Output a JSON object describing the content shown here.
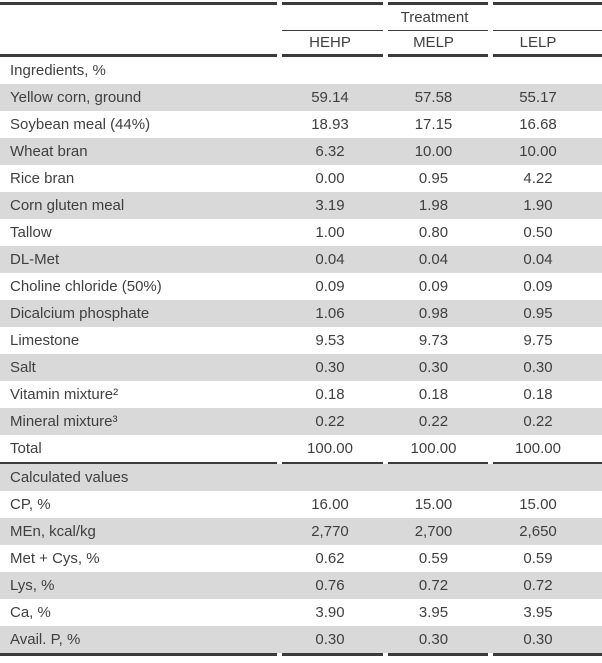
{
  "table": {
    "header": {
      "group_label": "Treatment",
      "columns": [
        "HEHP",
        "MELP",
        "LELP"
      ]
    },
    "rows": [
      {
        "label": "Ingredients, %",
        "section": true
      },
      {
        "label": "Yellow corn, ground",
        "values": [
          "59.14",
          "57.58",
          "55.17"
        ]
      },
      {
        "label": "Soybean meal (44%)",
        "values": [
          "18.93",
          "17.15",
          "16.68"
        ]
      },
      {
        "label": "Wheat bran",
        "values": [
          "6.32",
          "10.00",
          "10.00"
        ]
      },
      {
        "label": "Rice bran",
        "values": [
          "0.00",
          "0.95",
          "4.22"
        ]
      },
      {
        "label": "Corn gluten meal",
        "values": [
          "3.19",
          "1.98",
          "1.90"
        ]
      },
      {
        "label": "Tallow",
        "values": [
          "1.00",
          "0.80",
          "0.50"
        ]
      },
      {
        "label": "DL-Met",
        "values": [
          "0.04",
          "0.04",
          "0.04"
        ]
      },
      {
        "label": "Choline chloride (50%)",
        "values": [
          "0.09",
          "0.09",
          "0.09"
        ]
      },
      {
        "label": "Dicalcium phosphate",
        "values": [
          "1.06",
          "0.98",
          "0.95"
        ]
      },
      {
        "label": "Limestone",
        "values": [
          "9.53",
          "9.73",
          "9.75"
        ]
      },
      {
        "label": "Salt",
        "values": [
          "0.30",
          "0.30",
          "0.30"
        ]
      },
      {
        "label": "Vitamin mixture²",
        "values": [
          "0.18",
          "0.18",
          "0.18"
        ]
      },
      {
        "label": "Mineral mixture³",
        "values": [
          "0.22",
          "0.22",
          "0.22"
        ]
      },
      {
        "label": "Total",
        "values": [
          "100.00",
          "100.00",
          "100.00"
        ]
      },
      {
        "label": "Calculated values",
        "section": true
      },
      {
        "label": "CP, %",
        "values": [
          "16.00",
          "15.00",
          "15.00"
        ]
      },
      {
        "label": "MEn, kcal/kg",
        "values": [
          "2,770",
          "2,700",
          "2,650"
        ]
      },
      {
        "label": "Met + Cys, %",
        "values": [
          "0.62",
          "0.59",
          "0.59"
        ]
      },
      {
        "label": "Lys, %",
        "values": [
          "0.76",
          "0.72",
          "0.72"
        ]
      },
      {
        "label": "Ca, %",
        "values": [
          "3.90",
          "3.95",
          "3.95"
        ]
      },
      {
        "label": "Avail. P, %",
        "values": [
          "0.30",
          "0.30",
          "0.30"
        ]
      }
    ],
    "colors": {
      "row_shade": "#d9d9d9",
      "rule": "#3b3b3b",
      "text": "#3f3f3f"
    }
  }
}
